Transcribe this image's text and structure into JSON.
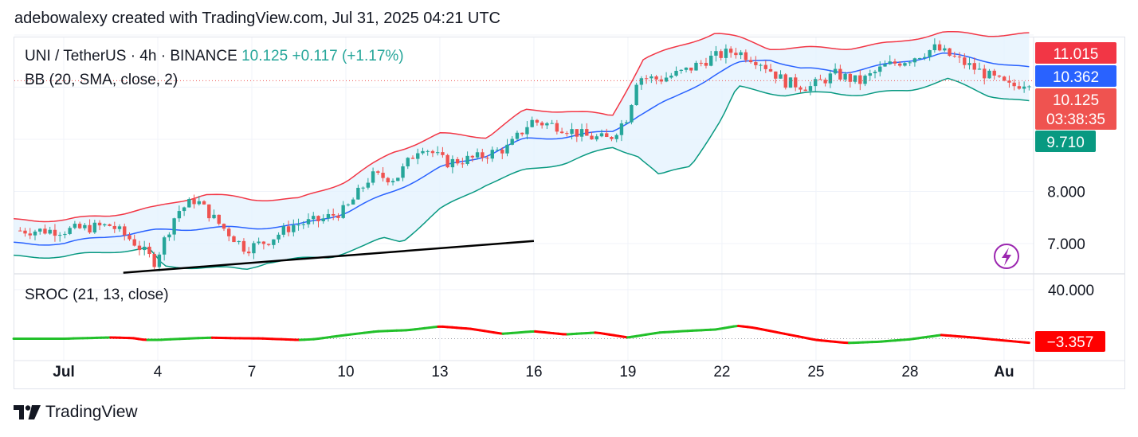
{
  "header": {
    "text": "adebowalexy created with TradingView.com, Jul 31, 2025 04:21 UTC"
  },
  "legend": {
    "symbol": "UNI / TetherUS · 4h · BINANCE",
    "price": "10.125",
    "change": "+0.117 (+1.17%)",
    "bb_label": "BB (20, SMA, close, 2)",
    "sroc_label": "SROC (21, 13, close)"
  },
  "branding": {
    "name": "TradingView"
  },
  "colors": {
    "up": "#26a69a",
    "down": "#ef5350",
    "bb_upper": "#f23645",
    "bb_basis": "#2962ff",
    "bb_lower": "#089981",
    "bb_fill": "#e3f2fd",
    "sroc_up": "#22c02a",
    "sroc_down": "#ff0000",
    "trendline": "#000000",
    "grid": "#f0f3fa"
  },
  "chart_data": [
    {
      "type": "candlestick",
      "title": "UNI / TetherUS · 4h · BINANCE",
      "indicator": "BB (20, SMA, close, 2)",
      "x_ticks": [
        "Jul",
        "4",
        "7",
        "10",
        "13",
        "16",
        "19",
        "22",
        "25",
        "28",
        "Au"
      ],
      "y_ticks": [
        7.0,
        8.0
      ],
      "y_range": [
        6.6,
        11.4
      ],
      "price_labels": [
        {
          "value": 11.015,
          "text": "11.015",
          "kind": "bb_upper"
        },
        {
          "value": 10.362,
          "text": "10.362",
          "kind": "bb_basis"
        },
        {
          "value": 10.125,
          "text": "10.125",
          "timer": "03:38:35",
          "kind": "last"
        },
        {
          "value": 9.71,
          "text": "9.710",
          "kind": "bb_lower"
        }
      ],
      "price_path": [
        [
          0,
          7.25
        ],
        [
          1.5,
          7.35
        ],
        [
          2.2,
          7.05
        ],
        [
          2.9,
          6.65
        ],
        [
          3.6,
          7.6
        ],
        [
          4.2,
          7.85
        ],
        [
          5.0,
          7.35
        ],
        [
          5.8,
          6.9
        ],
        [
          6.5,
          7.05
        ],
        [
          7.3,
          7.35
        ],
        [
          8.2,
          7.45
        ],
        [
          9.0,
          7.65
        ],
        [
          9.8,
          8.3
        ],
        [
          10.6,
          8.25
        ],
        [
          11.4,
          8.9
        ],
        [
          12.2,
          8.55
        ],
        [
          13.2,
          8.65
        ],
        [
          14.2,
          8.85
        ],
        [
          14.9,
          9.35
        ],
        [
          15.8,
          9.25
        ],
        [
          16.7,
          9.05
        ],
        [
          17.4,
          9.0
        ],
        [
          18.0,
          9.45
        ],
        [
          18.3,
          10.2
        ],
        [
          19.0,
          10.15
        ],
        [
          19.8,
          10.3
        ],
        [
          20.6,
          10.55
        ],
        [
          21.4,
          10.7
        ],
        [
          22.2,
          10.5
        ],
        [
          23.0,
          10.1
        ],
        [
          23.8,
          10.0
        ],
        [
          24.6,
          10.25
        ],
        [
          25.4,
          10.1
        ],
        [
          26.2,
          10.4
        ],
        [
          27.0,
          10.55
        ],
        [
          27.8,
          10.75
        ],
        [
          28.6,
          10.5
        ],
        [
          29.4,
          10.25
        ],
        [
          30.2,
          10.0
        ],
        [
          30.8,
          10.125
        ]
      ],
      "bb_upper": [
        [
          0,
          7.45
        ],
        [
          1.5,
          7.55
        ],
        [
          3.0,
          7.7
        ],
        [
          4.5,
          7.95
        ],
        [
          6.0,
          7.85
        ],
        [
          7.5,
          7.85
        ],
        [
          9.0,
          8.2
        ],
        [
          10.5,
          8.75
        ],
        [
          12.0,
          9.1
        ],
        [
          13.5,
          9.05
        ],
        [
          14.7,
          9.55
        ],
        [
          16.0,
          9.55
        ],
        [
          17.5,
          9.45
        ],
        [
          18.5,
          10.55
        ],
        [
          19.5,
          10.75
        ],
        [
          20.8,
          11.05
        ],
        [
          21.5,
          10.95
        ],
        [
          22.5,
          10.75
        ],
        [
          23.5,
          10.75
        ],
        [
          25.0,
          10.75
        ],
        [
          26.5,
          10.85
        ],
        [
          28.0,
          11.05
        ],
        [
          29.5,
          11.0
        ],
        [
          30.8,
          11.015
        ]
      ],
      "bb_basis": [
        [
          0,
          7.0
        ],
        [
          1.5,
          7.15
        ],
        [
          3.0,
          7.25
        ],
        [
          4.5,
          7.3
        ],
        [
          6.0,
          7.3
        ],
        [
          7.5,
          7.35
        ],
        [
          9.0,
          7.6
        ],
        [
          10.5,
          8.0
        ],
        [
          12.0,
          8.45
        ],
        [
          13.5,
          8.7
        ],
        [
          14.7,
          9.0
        ],
        [
          16.0,
          9.05
        ],
        [
          17.5,
          9.15
        ],
        [
          18.3,
          9.45
        ],
        [
          19.5,
          9.8
        ],
        [
          20.8,
          10.25
        ],
        [
          21.5,
          10.45
        ],
        [
          22.5,
          10.55
        ],
        [
          23.5,
          10.35
        ],
        [
          25.0,
          10.3
        ],
        [
          26.5,
          10.45
        ],
        [
          28.0,
          10.65
        ],
        [
          29.5,
          10.5
        ],
        [
          30.8,
          10.362
        ]
      ],
      "bb_lower": [
        [
          0,
          6.75
        ],
        [
          1.5,
          6.85
        ],
        [
          2.7,
          6.9
        ],
        [
          3.2,
          6.55
        ],
        [
          4.5,
          6.55
        ],
        [
          5.8,
          6.5
        ],
        [
          6.5,
          6.65
        ],
        [
          7.5,
          6.7
        ],
        [
          8.5,
          6.75
        ],
        [
          9.6,
          6.95
        ],
        [
          10.2,
          7.1
        ],
        [
          10.8,
          7.05
        ],
        [
          12.0,
          7.65
        ],
        [
          13.5,
          8.15
        ],
        [
          14.7,
          8.4
        ],
        [
          16.0,
          8.55
        ],
        [
          17.5,
          8.85
        ],
        [
          18.3,
          8.7
        ],
        [
          19.0,
          8.3
        ],
        [
          20.0,
          8.5
        ],
        [
          21.0,
          9.4
        ],
        [
          21.5,
          10.0
        ],
        [
          23.0,
          9.85
        ],
        [
          24.5,
          9.9
        ],
        [
          25.5,
          9.85
        ],
        [
          27.0,
          9.95
        ],
        [
          28.2,
          10.15
        ],
        [
          29.5,
          9.85
        ],
        [
          30.8,
          9.71
        ]
      ],
      "trendline": [
        [
          1.9,
          6.44
        ],
        [
          15.0,
          7.05
        ]
      ]
    },
    {
      "type": "line",
      "title": "SROC (21, 13, close)",
      "y_ticks": [
        40.0
      ],
      "y_range": [
        -20,
        50
      ],
      "last_label": {
        "value": -3.357,
        "text": "−3.357"
      },
      "values": [
        [
          0,
          0.0
        ],
        [
          1.5,
          1.0
        ],
        [
          2.2,
          0.5
        ],
        [
          2.6,
          -1.0
        ],
        [
          3.0,
          -1.0
        ],
        [
          3.4,
          -0.5
        ],
        [
          4.0,
          0.2
        ],
        [
          4.7,
          0.8
        ],
        [
          5.5,
          0.4
        ],
        [
          6.3,
          0.2
        ],
        [
          7.0,
          -0.5
        ],
        [
          7.5,
          -1.0
        ],
        [
          8.0,
          -0.4
        ],
        [
          9.0,
          3.0
        ],
        [
          10.0,
          6.0
        ],
        [
          11.0,
          7.0
        ],
        [
          12.0,
          10.0
        ],
        [
          13.0,
          8.0
        ],
        [
          14.0,
          4.0
        ],
        [
          15.0,
          6.0
        ],
        [
          16.0,
          3.5
        ],
        [
          17.0,
          5.0
        ],
        [
          18.0,
          1.0
        ],
        [
          19.0,
          5.0
        ],
        [
          20.0,
          6.5
        ],
        [
          20.8,
          7.5
        ],
        [
          21.5,
          10.5
        ],
        [
          22.0,
          9.0
        ],
        [
          23.0,
          4.0
        ],
        [
          24.0,
          -1.0
        ],
        [
          25.0,
          -3.5
        ],
        [
          26.0,
          -2.5
        ],
        [
          27.0,
          -0.5
        ],
        [
          28.0,
          3.0
        ],
        [
          29.0,
          1.0
        ],
        [
          29.8,
          -1.0
        ],
        [
          30.8,
          -3.357
        ]
      ]
    }
  ]
}
